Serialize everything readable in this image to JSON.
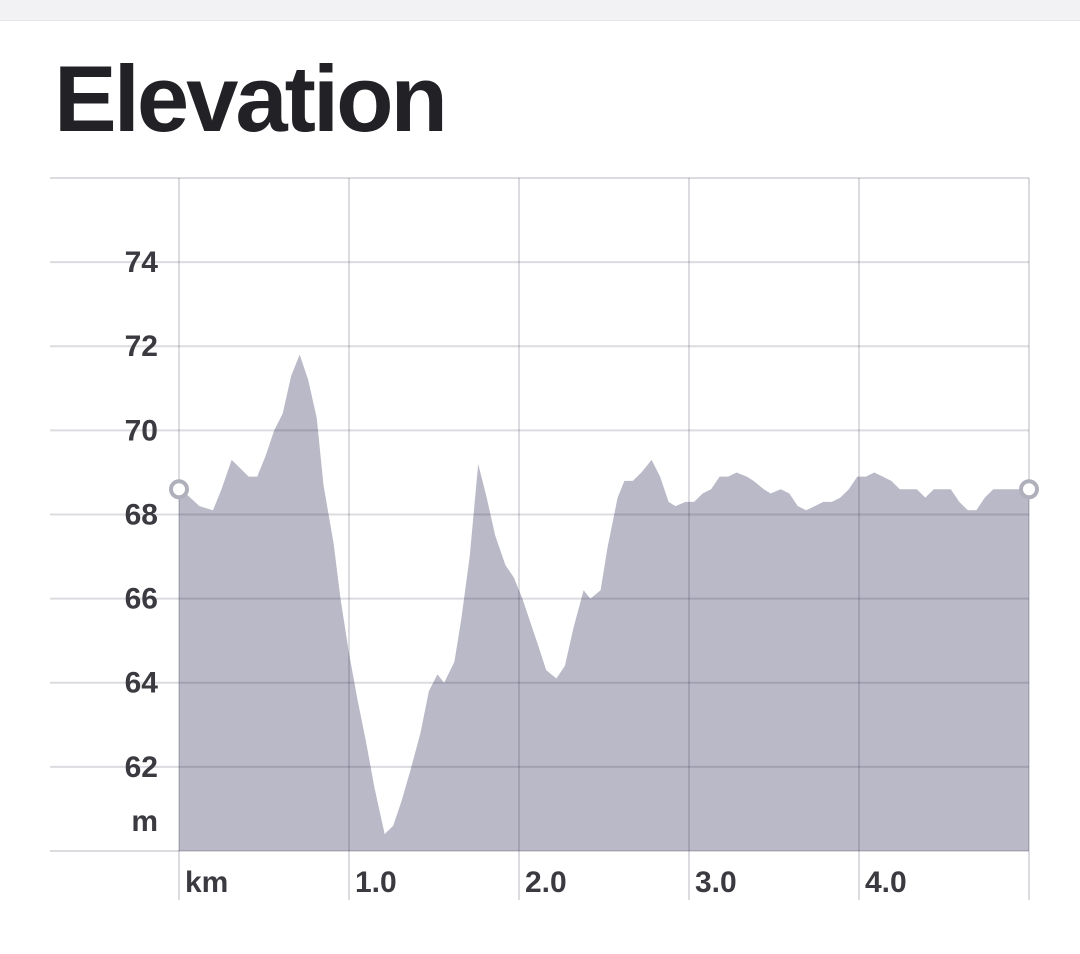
{
  "chart_data": {
    "type": "area",
    "title": "Elevation",
    "x_label": "km",
    "y_label": "m",
    "color": "#b9b9c8",
    "grid": true,
    "xlim": [
      0,
      5
    ],
    "ylim": [
      60,
      76
    ],
    "xticks": [
      {
        "value": 1,
        "label": "1.0"
      },
      {
        "value": 2,
        "label": "2.0"
      },
      {
        "value": 3,
        "label": "3.0"
      },
      {
        "value": 4,
        "label": "4.0"
      }
    ],
    "yticks": [
      62,
      64,
      66,
      68,
      70,
      72,
      74
    ],
    "x": [
      0,
      0.04,
      0.12,
      0.2,
      0.25,
      0.31,
      0.36,
      0.41,
      0.46,
      0.51,
      0.56,
      0.61,
      0.66,
      0.71,
      0.76,
      0.81,
      0.85,
      0.91,
      0.95,
      1.0,
      1.05,
      1.1,
      1.15,
      1.21,
      1.26,
      1.31,
      1.36,
      1.42,
      1.47,
      1.52,
      1.56,
      1.62,
      1.66,
      1.71,
      1.76,
      1.81,
      1.86,
      1.92,
      1.97,
      2.02,
      2.07,
      2.12,
      2.16,
      2.22,
      2.27,
      2.32,
      2.38,
      2.42,
      2.48,
      2.52,
      2.58,
      2.62,
      2.67,
      2.72,
      2.78,
      2.83,
      2.88,
      2.92,
      2.98,
      3.03,
      3.08,
      3.13,
      3.18,
      3.23,
      3.28,
      3.34,
      3.38,
      3.44,
      3.48,
      3.54,
      3.59,
      3.64,
      3.69,
      3.74,
      3.79,
      3.84,
      3.89,
      3.94,
      3.99,
      4.04,
      4.09,
      4.14,
      4.19,
      4.24,
      4.29,
      4.34,
      4.39,
      4.44,
      4.49,
      4.54,
      4.59,
      4.64,
      4.69,
      4.74,
      4.79,
      4.84,
      4.89,
      5.0
    ],
    "values": [
      68.6,
      68.5,
      68.2,
      68.1,
      68.6,
      69.3,
      69.1,
      68.9,
      68.9,
      69.4,
      70.0,
      70.4,
      71.3,
      71.8,
      71.2,
      70.3,
      68.7,
      67.3,
      66.0,
      64.7,
      63.6,
      62.6,
      61.5,
      60.4,
      60.6,
      61.2,
      61.9,
      62.8,
      63.8,
      64.2,
      64.0,
      64.5,
      65.5,
      67.0,
      69.2,
      68.4,
      67.5,
      66.8,
      66.5,
      66.0,
      65.4,
      64.8,
      64.3,
      64.1,
      64.4,
      65.3,
      66.2,
      66.0,
      66.2,
      67.2,
      68.4,
      68.8,
      68.8,
      69.0,
      69.3,
      68.9,
      68.3,
      68.2,
      68.3,
      68.3,
      68.5,
      68.6,
      68.9,
      68.9,
      69.0,
      68.9,
      68.8,
      68.6,
      68.5,
      68.6,
      68.5,
      68.2,
      68.1,
      68.2,
      68.3,
      68.3,
      68.4,
      68.6,
      68.9,
      68.9,
      69.0,
      68.9,
      68.8,
      68.6,
      68.6,
      68.6,
      68.4,
      68.6,
      68.6,
      68.6,
      68.3,
      68.1,
      68.1,
      68.4,
      68.6,
      68.6,
      68.6,
      68.6
    ]
  }
}
